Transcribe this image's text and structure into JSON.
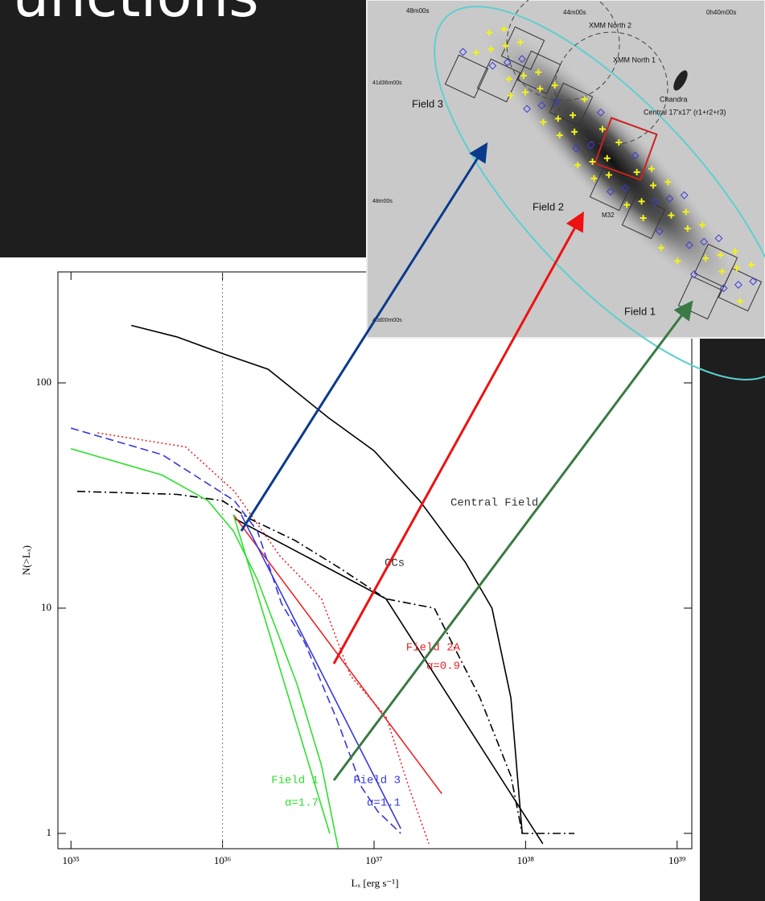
{
  "slide_title": "Functions",
  "image": {
    "labels": [
      "48m00s",
      "44m00s",
      "0h40m00s",
      "XMM North 2",
      "XMM North 1",
      "41d36m00s",
      "Field 3",
      "Chandra",
      "Central 17'x17' (r1+r2+r3)",
      "48m00s",
      "Field 2",
      "M32",
      "40d00m00s",
      "Field 1"
    ]
  },
  "chart_data": {
    "type": "line",
    "log_x": true,
    "log_y": true,
    "xlabel": "Lₓ [erg s⁻¹]",
    "ylabel": "N(>Lₓ)",
    "xlim": [
      8.2e+34,
      1.25e+39
    ],
    "ylim": [
      0.855,
      311
    ],
    "xticks": [
      {
        "value": 1e+35,
        "label": "10³⁵"
      },
      {
        "value": 1e+36,
        "label": "10³⁶"
      },
      {
        "value": 1e+37,
        "label": "10³⁷"
      },
      {
        "value": 1e+38,
        "label": "10³⁸"
      },
      {
        "value": 1e+39,
        "label": "10³⁹"
      }
    ],
    "yticks": [
      1,
      10,
      100
    ],
    "reference_x": 1e+36,
    "series": [
      {
        "name": "Central Field",
        "color": "#000000",
        "dash": "solid",
        "x": [
          2.5e+35,
          5e+35,
          1e+36,
          2e+36,
          5e+36,
          1e+37,
          2e+37,
          4e+37,
          6e+37,
          8e+37,
          9.5e+37
        ],
        "values": [
          180,
          160,
          135,
          115,
          70,
          50,
          30,
          16,
          10,
          4,
          1
        ]
      },
      {
        "name": "GCs",
        "color": "#000000",
        "dash": "dash-dot",
        "x": [
          1.1e+35,
          5e+35,
          1e+36,
          1.5e+36,
          3e+36,
          6e+36,
          1.2e+37,
          2.5e+37,
          5e+37,
          8e+37,
          9.5e+37,
          2.1e+38
        ],
        "values": [
          33,
          32,
          30,
          25,
          20,
          15,
          11,
          10,
          4,
          1.8,
          1,
          1
        ],
        "fit": {
          "x": [
            1.2e+36,
            1.2e+37,
            1.3e+38
          ],
          "values": [
            25,
            11,
            0.9
          ]
        }
      },
      {
        "name": "Field 2A",
        "alpha_label": "α=0.9",
        "color": "#e8262a",
        "dash": "dotted",
        "x": [
          1.5e+35,
          5.7e+35,
          1.2e+36,
          2.4e+36,
          4.5e+36,
          7e+36,
          1.2e+37,
          1.7e+37,
          2.3e+37
        ],
        "values": [
          60,
          52,
          33,
          17,
          11,
          5,
          3.3,
          1.6,
          0.9
        ],
        "fit": {
          "x": [
            1.18e+36,
            2.8e+37
          ],
          "values": [
            26,
            1.5
          ]
        }
      },
      {
        "name": "Field 3",
        "alpha_label": "α=1.1",
        "color": "#3838d8",
        "dash": "dashed",
        "x": [
          1e+35,
          4e+35,
          1.2e+36,
          1.7e+36,
          2.45e+36,
          3.5e+36,
          5.8e+36,
          8.3e+36,
          1.06e+37,
          1.5e+37
        ],
        "values": [
          63,
          48,
          30,
          22,
          10.5,
          7,
          3.1,
          1.6,
          1.25,
          1
        ],
        "fit": {
          "x": [
            1.33e+36,
            1.5e+37
          ],
          "values": [
            26,
            1.05
          ]
        }
      },
      {
        "name": "Field 1",
        "alpha_label": "α=1.7",
        "color": "#2ee02e",
        "dash": "solid",
        "x": [
          1e+35,
          4e+35,
          8e+35,
          1.18e+36,
          1.7e+36,
          2.45e+36,
          3.1e+36,
          4.5e+36,
          5.8e+36
        ],
        "values": [
          51,
          39,
          30,
          22,
          13.4,
          7,
          4.6,
          2,
          0.86
        ],
        "fit": {
          "x": [
            1.18e+36,
            5.1e+36
          ],
          "values": [
            26,
            1
          ]
        }
      }
    ]
  }
}
